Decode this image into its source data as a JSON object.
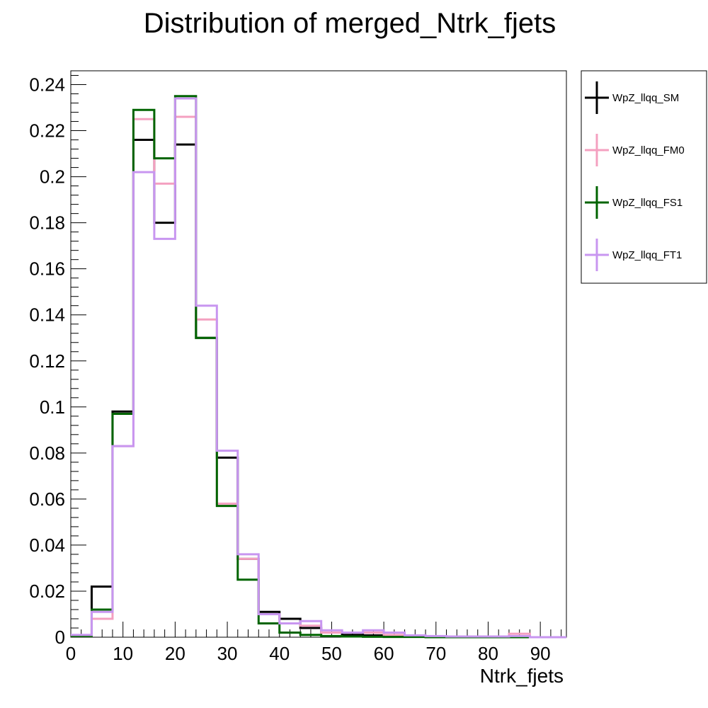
{
  "chart_data": {
    "type": "line",
    "style": "step-histogram",
    "title": "Distribution of merged_Ntrk_fjets",
    "xlabel": "Ntrk_fjets",
    "ylabel": "",
    "xlim": [
      0,
      95
    ],
    "ylim": [
      0,
      0.246
    ],
    "bin_edges": [
      0,
      4,
      8,
      12,
      16,
      20,
      24,
      28,
      32,
      36,
      40,
      44,
      48,
      52,
      56,
      60,
      64,
      68,
      72,
      76,
      80,
      84,
      88,
      92,
      95
    ],
    "x_ticks": [
      0,
      10,
      20,
      30,
      40,
      50,
      60,
      70,
      80,
      90
    ],
    "x_tick_labels": [
      "0",
      "10",
      "20",
      "30",
      "40",
      "50",
      "60",
      "70",
      "80",
      "90"
    ],
    "y_ticks": [
      0,
      0.02,
      0.04,
      0.06,
      0.08,
      0.1,
      0.12,
      0.14,
      0.16,
      0.18,
      0.2,
      0.22,
      0.24
    ],
    "y_tick_labels": [
      "0",
      "0.02",
      "0.04",
      "0.06",
      "0.08",
      "0.1",
      "0.12",
      "0.14",
      "0.16",
      "0.18",
      "0.2",
      "0.22",
      "0.24"
    ],
    "legend_position": "right-outside",
    "series": [
      {
        "name": "WpZ_llqq_SM",
        "color": "#000000",
        "values": [
          0.0005,
          0.022,
          0.098,
          0.216,
          0.18,
          0.214,
          0.13,
          0.078,
          0.034,
          0.011,
          0.008,
          0.004,
          0.002,
          0.001,
          0.0008,
          0.0004,
          0.0003,
          0.0002,
          0.0001,
          0.0001,
          0.0001,
          0.0001,
          0.0,
          0.0
        ]
      },
      {
        "name": "WpZ_llqq_FM0",
        "color": "#f4a0c0",
        "values": [
          0.0005,
          0.008,
          0.083,
          0.225,
          0.197,
          0.226,
          0.138,
          0.058,
          0.034,
          0.01,
          0.006,
          0.005,
          0.002,
          0.002,
          0.002,
          0.001,
          0.0005,
          0.0003,
          0.0003,
          0.0003,
          0.0003,
          0.0015,
          0.0,
          0.0
        ]
      },
      {
        "name": "WpZ_llqq_FS1",
        "color": "#006400",
        "values": [
          0.0005,
          0.012,
          0.097,
          0.229,
          0.208,
          0.235,
          0.13,
          0.057,
          0.025,
          0.006,
          0.002,
          0.001,
          0.0005,
          0.0003,
          0.0002,
          0.0001,
          0.0001,
          0.0,
          0.0,
          0.0,
          0.0,
          0.0,
          0.0,
          0.0
        ]
      },
      {
        "name": "WpZ_llqq_FT1",
        "color": "#c896f0",
        "values": [
          0.001,
          0.011,
          0.083,
          0.202,
          0.173,
          0.234,
          0.144,
          0.081,
          0.036,
          0.01,
          0.006,
          0.007,
          0.003,
          0.002,
          0.003,
          0.002,
          0.0008,
          0.0005,
          0.0003,
          0.0003,
          0.0003,
          0.0005,
          0.0,
          0.0
        ]
      }
    ]
  }
}
